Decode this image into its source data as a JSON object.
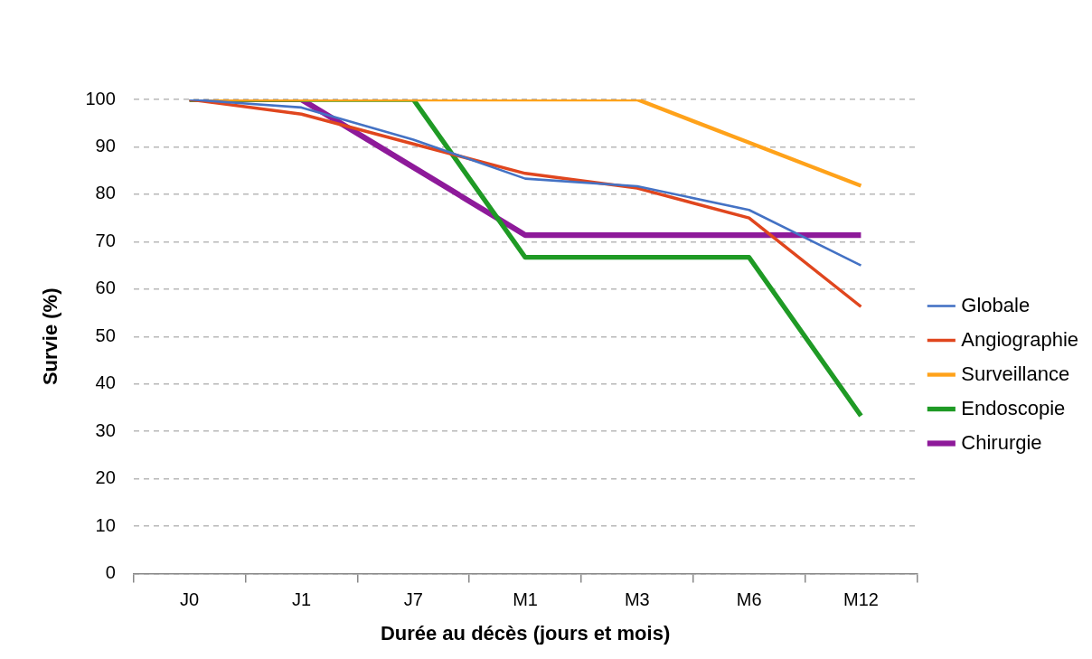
{
  "chart_data": {
    "type": "line",
    "xlabel": "Durée au décès (jours et mois)",
    "ylabel": "Survie (%)",
    "categories": [
      "J0",
      "J1",
      "J7",
      "M1",
      "M3",
      "M6",
      "M12"
    ],
    "series": [
      {
        "name": "Globale",
        "color": "#4472c4",
        "values": [
          100,
          98.3,
          91.5,
          83.3,
          81.7,
          76.7,
          65
        ]
      },
      {
        "name": "Angiographie",
        "color": "#e0461e",
        "values": [
          100,
          96.9,
          90.6,
          84.4,
          81.3,
          75,
          56.3
        ]
      },
      {
        "name": "Surveillance",
        "color": "#ffa21a",
        "values": [
          100,
          100,
          100,
          100,
          100,
          90.9,
          81.8
        ]
      },
      {
        "name": "Endoscopie",
        "color": "#1f9a25",
        "values": [
          100,
          100,
          100,
          66.7,
          66.7,
          66.7,
          33.3
        ]
      },
      {
        "name": "Chirurgie",
        "color": "#8e1a9a",
        "values": [
          100,
          100,
          85.7,
          71.4,
          71.4,
          71.4,
          71.4
        ]
      }
    ],
    "ylim": [
      0,
      100
    ],
    "yticks": [
      0,
      10,
      20,
      30,
      40,
      50,
      60,
      70,
      80,
      90,
      100
    ],
    "grid": "y",
    "legend": "right",
    "marker": "none",
    "line_style": "solid"
  }
}
